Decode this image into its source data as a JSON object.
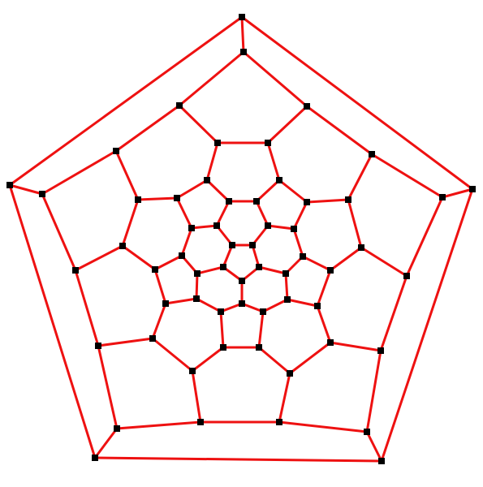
{
  "diagram": {
    "type": "planar-graph",
    "description_free": true,
    "edge_color": "#ee1111",
    "node_color": "#000000",
    "background_color": "#ffffff"
  }
}
